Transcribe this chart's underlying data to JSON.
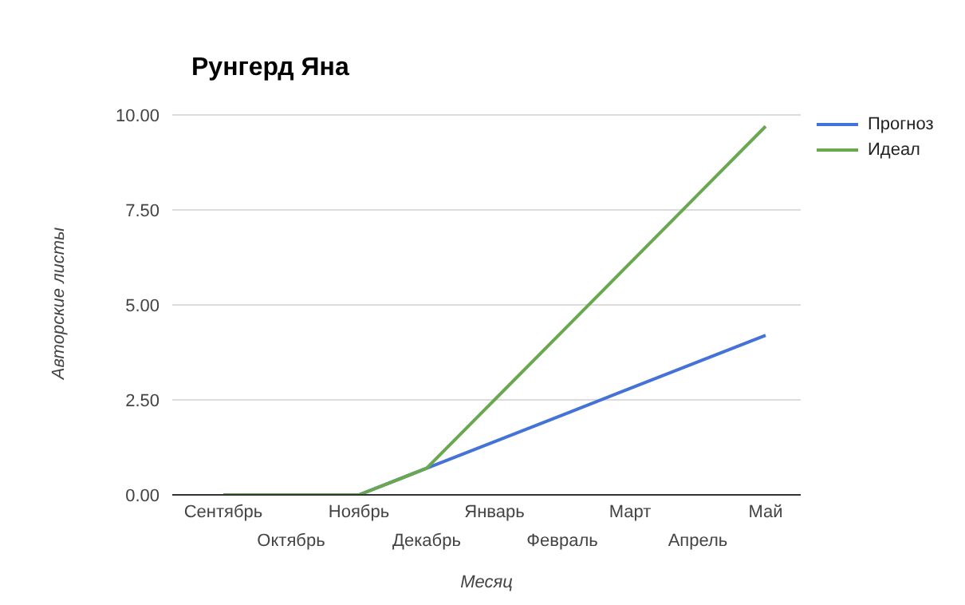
{
  "chart_data": {
    "type": "line",
    "title": "Рунгерд Яна",
    "xlabel": "Месяц",
    "ylabel": "Авторские листы",
    "categories": [
      "Сентябрь",
      "Октябрь",
      "Ноябрь",
      "Декабрь",
      "Январь",
      "Февраль",
      "Март",
      "Апрель",
      "Май"
    ],
    "series": [
      {
        "name": "Прогноз",
        "color": "#4472d8",
        "values": [
          null,
          null,
          0,
          0.7,
          1.4,
          2.1,
          2.8,
          3.5,
          4.2
        ]
      },
      {
        "name": "Идеал",
        "color": "#6aa84f",
        "values": [
          0,
          0,
          0,
          0.7,
          2.5,
          4.3,
          6.1,
          7.9,
          9.7
        ]
      }
    ],
    "ylim": [
      0,
      10
    ],
    "yticks": [
      {
        "value": 0,
        "label": "0.00"
      },
      {
        "value": 2.5,
        "label": "2.50"
      },
      {
        "value": 5,
        "label": "5.00"
      },
      {
        "value": 7.5,
        "label": "7.50"
      },
      {
        "value": 10,
        "label": "10.00"
      }
    ],
    "grid": "y",
    "legend": "top right",
    "marker": "none",
    "line_style": "solid"
  }
}
